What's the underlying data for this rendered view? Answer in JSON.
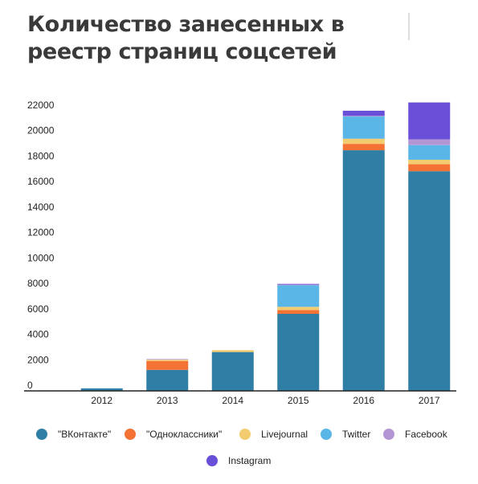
{
  "title": "Количество занесенных в реестр страниц соцсетей",
  "chart_data": {
    "type": "bar",
    "stacked": true,
    "categories": [
      "2012",
      "2013",
      "2014",
      "2015",
      "2016",
      "2017"
    ],
    "ylim": [
      0,
      22500
    ],
    "yticks": [
      0,
      2000,
      4000,
      6000,
      8000,
      10000,
      12000,
      14000,
      16000,
      18000,
      20000,
      22000
    ],
    "grid": false,
    "legend_position": "bottom",
    "series": [
      {
        "name": "\"ВКонтакте\"",
        "color": "#2e7ea5",
        "values": [
          200,
          1650,
          3050,
          6050,
          18900,
          17250
        ]
      },
      {
        "name": "\"Одноклассники\"",
        "color": "#f57235",
        "values": [
          0,
          700,
          0,
          300,
          500,
          550
        ]
      },
      {
        "name": "Livejournal",
        "color": "#f2cc6e",
        "values": [
          0,
          100,
          150,
          250,
          400,
          350
        ]
      },
      {
        "name": "Twitter",
        "color": "#5ab6e6",
        "values": [
          0,
          0,
          0,
          1700,
          1750,
          1150
        ]
      },
      {
        "name": "Facebook",
        "color": "#b396d3",
        "values": [
          0,
          50,
          0,
          50,
          50,
          450
        ]
      },
      {
        "name": "Instagram",
        "color": "#6a4fd9",
        "values": [
          0,
          0,
          0,
          50,
          400,
          2900
        ]
      }
    ]
  }
}
